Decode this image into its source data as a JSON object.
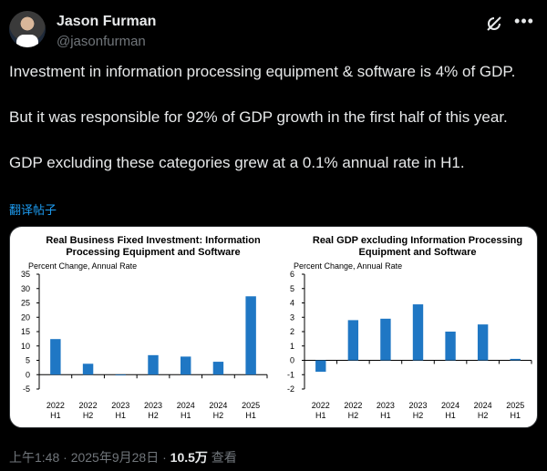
{
  "author": {
    "name": "Jason Furman",
    "handle": "@jasonfurman"
  },
  "icons": {
    "grok": "grok-icon",
    "more": "more-icon"
  },
  "tweet": {
    "paragraphs": [
      "Investment in information processing equipment & software is 4% of GDP.",
      "But it was responsible for 92% of GDP growth in the first half of this year.",
      "GDP excluding these categories grew at a 0.1% annual rate in H1."
    ],
    "translate_label": "翻译帖子"
  },
  "meta": {
    "time": "上午1:48",
    "sep1": " · ",
    "date": "2025年9月28日",
    "sep2": " · ",
    "views": "10.5万",
    "views_label": " 查看"
  },
  "colors": {
    "bar": "#1f77c4",
    "link": "#1d9bf0"
  },
  "chart_data": [
    {
      "type": "bar",
      "title": [
        "Real Business Fixed Investment: Information",
        "Processing Equipment and Software"
      ],
      "ylabel": "Percent Change, Annual Rate",
      "categories": [
        "2022 H1",
        "2022 H2",
        "2023 H1",
        "2023 H2",
        "2024 H1",
        "2024 H2",
        "2025 H1"
      ],
      "category_lines": [
        [
          "2022",
          "H1"
        ],
        [
          "2022",
          "H2"
        ],
        [
          "2023",
          "H1"
        ],
        [
          "2023",
          "H2"
        ],
        [
          "2024",
          "H1"
        ],
        [
          "2024",
          "H2"
        ],
        [
          "2025",
          "H1"
        ]
      ],
      "values": [
        12.4,
        3.8,
        -0.2,
        6.8,
        6.3,
        4.5,
        27.3
      ],
      "ylim": [
        -5,
        35
      ],
      "yticks": [
        -5,
        0,
        5,
        10,
        15,
        20,
        25,
        30,
        35
      ]
    },
    {
      "type": "bar",
      "title": [
        "Real GDP excluding Information Processing",
        "Equipment and Software"
      ],
      "ylabel": "Percent Change, Annual Rate",
      "categories": [
        "2022 H1",
        "2022 H2",
        "2023 H1",
        "2023 H2",
        "2024 H1",
        "2024 H2",
        "2025 H1"
      ],
      "category_lines": [
        [
          "2022",
          "H1"
        ],
        [
          "2022",
          "H2"
        ],
        [
          "2023",
          "H1"
        ],
        [
          "2023",
          "H2"
        ],
        [
          "2024",
          "H1"
        ],
        [
          "2024",
          "H2"
        ],
        [
          "2025",
          "H1"
        ]
      ],
      "values": [
        -0.8,
        2.8,
        2.9,
        3.9,
        2.0,
        2.5,
        0.1
      ],
      "ylim": [
        -2,
        6
      ],
      "yticks": [
        -2,
        -1,
        0,
        1,
        2,
        3,
        4,
        5,
        6
      ]
    }
  ]
}
